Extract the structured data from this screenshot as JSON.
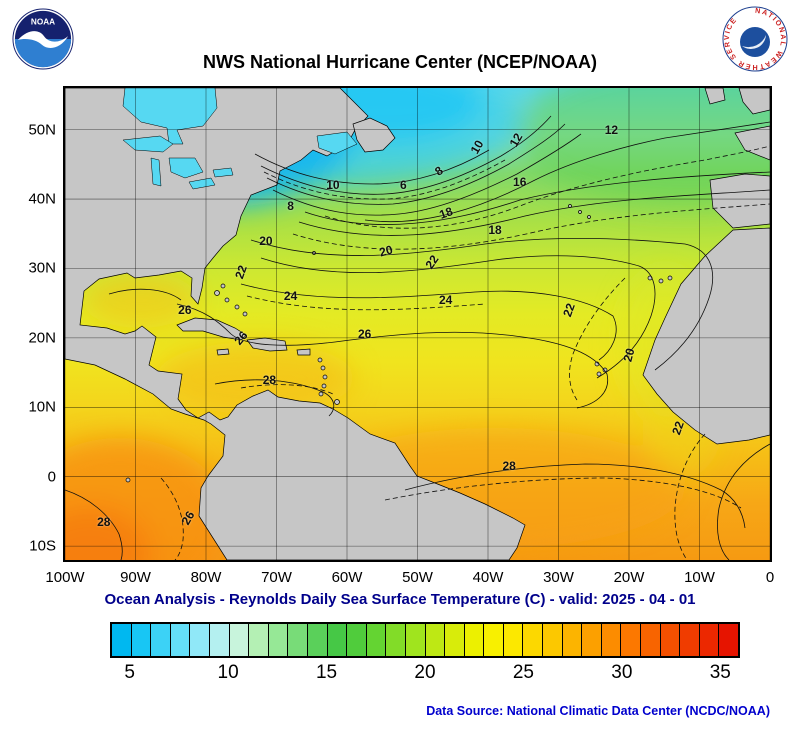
{
  "header": {
    "title": "NWS National Hurricane Center (NCEP/NOAA)",
    "noaa_logo": "NOAA",
    "nws_logo_text": "NATIONAL WEATHER SERVICE"
  },
  "caption": "Ocean Analysis - Reynolds Daily Sea Surface Temperature (C) - valid: 2025 - 04 - 01",
  "footer": {
    "data_source": "Data Source: National Climatic Data Center (NCDC/NOAA)"
  },
  "theme": {
    "caption_color": "#00008b",
    "datasource_color": "#0000cd",
    "land_color": "#c6c6c6"
  },
  "chart_data": {
    "type": "heatmap",
    "subtype": "sea-surface-temperature-contour-map",
    "title": "NWS National Hurricane Center (NCEP/NOAA)",
    "subtitle": "Ocean Analysis - Reynolds Daily Sea Surface Temperature (C) - valid: 2025 - 04 - 01",
    "units": "C",
    "valid_date": "2025 - 04 - 01",
    "lon_range": [
      -100,
      0
    ],
    "lat_range": [
      -12,
      56
    ],
    "grid": true,
    "contour_interval": 1,
    "labeled_contours": [
      6,
      8,
      10,
      12,
      16,
      18,
      20,
      22,
      24,
      26,
      28
    ],
    "x_ticks": [
      {
        "label": "100W",
        "lon": -100
      },
      {
        "label": "90W",
        "lon": -90
      },
      {
        "label": "80W",
        "lon": -80
      },
      {
        "label": "70W",
        "lon": -70
      },
      {
        "label": "60W",
        "lon": -60
      },
      {
        "label": "50W",
        "lon": -50
      },
      {
        "label": "40W",
        "lon": -40
      },
      {
        "label": "30W",
        "lon": -30
      },
      {
        "label": "20W",
        "lon": -20
      },
      {
        "label": "10W",
        "lon": -10
      },
      {
        "label": "0",
        "lon": 0
      }
    ],
    "y_ticks": [
      {
        "label": "50N",
        "lat": 50
      },
      {
        "label": "40N",
        "lat": 40
      },
      {
        "label": "30N",
        "lat": 30
      },
      {
        "label": "20N",
        "lat": 20
      },
      {
        "label": "10N",
        "lat": 10
      },
      {
        "label": "0",
        "lat": 0
      },
      {
        "label": "10S",
        "lat": -10
      }
    ],
    "contour_labels": [
      {
        "value": "8",
        "lon": -68,
        "lat": 39,
        "rot": 0
      },
      {
        "value": "10",
        "lon": -62,
        "lat": 42,
        "rot": 0
      },
      {
        "value": "6",
        "lon": -52,
        "lat": 42,
        "rot": 0
      },
      {
        "value": "8",
        "lon": -47,
        "lat": 44,
        "rot": -35
      },
      {
        "value": "10",
        "lon": -41.5,
        "lat": 47.5,
        "rot": -60
      },
      {
        "value": "12",
        "lon": -36,
        "lat": 48.5,
        "rot": -60
      },
      {
        "value": "12",
        "lon": -22.5,
        "lat": 50,
        "rot": 0
      },
      {
        "value": "16",
        "lon": -35.5,
        "lat": 42.5,
        "rot": 0
      },
      {
        "value": "18",
        "lon": -46,
        "lat": 38,
        "rot": -20
      },
      {
        "value": "18",
        "lon": -39,
        "lat": 35.5,
        "rot": 0
      },
      {
        "value": "20",
        "lon": -71.5,
        "lat": 34,
        "rot": 0
      },
      {
        "value": "20",
        "lon": -54.5,
        "lat": 32.5,
        "rot": -15
      },
      {
        "value": "22",
        "lon": -48,
        "lat": 31,
        "rot": -55
      },
      {
        "value": "22",
        "lon": -75,
        "lat": 29.5,
        "rot": -70
      },
      {
        "value": "24",
        "lon": -68,
        "lat": 26,
        "rot": 0
      },
      {
        "value": "24",
        "lon": -46,
        "lat": 25.5,
        "rot": 0
      },
      {
        "value": "22",
        "lon": -28.5,
        "lat": 24,
        "rot": -70
      },
      {
        "value": "26",
        "lon": -83,
        "lat": 24,
        "rot": 0
      },
      {
        "value": "26",
        "lon": -75,
        "lat": 20,
        "rot": -50
      },
      {
        "value": "26",
        "lon": -57.5,
        "lat": 20.5,
        "rot": 0
      },
      {
        "value": "20",
        "lon": -20,
        "lat": 17.5,
        "rot": -75
      },
      {
        "value": "28",
        "lon": -71,
        "lat": 14,
        "rot": 0
      },
      {
        "value": "22",
        "lon": -13,
        "lat": 7,
        "rot": -70
      },
      {
        "value": "28",
        "lon": -37,
        "lat": 1.5,
        "rot": 0
      },
      {
        "value": "28",
        "lon": -94.5,
        "lat": -6.5,
        "rot": 0
      },
      {
        "value": "26",
        "lon": -82.5,
        "lat": -6,
        "rot": -60
      }
    ],
    "colorbar": {
      "min": 4,
      "max": 36,
      "tick_labels": [
        5,
        10,
        15,
        20,
        25,
        30,
        35
      ],
      "colors": [
        "#00b8f0",
        "#18c6f4",
        "#3cd2f6",
        "#64def8",
        "#90e8f8",
        "#b4f0f0",
        "#c8f4dc",
        "#b4f0b4",
        "#96e896",
        "#78dc78",
        "#5ad05a",
        "#46c846",
        "#50cc3c",
        "#64d432",
        "#82dc28",
        "#a0e41e",
        "#bee814",
        "#d8ec0a",
        "#ecf000",
        "#f8f000",
        "#fce800",
        "#fcd800",
        "#fcc800",
        "#fcb400",
        "#fca000",
        "#fc8c00",
        "#fc7800",
        "#f86400",
        "#f45000",
        "#f03c00",
        "#ec2800",
        "#e61400"
      ]
    }
  }
}
